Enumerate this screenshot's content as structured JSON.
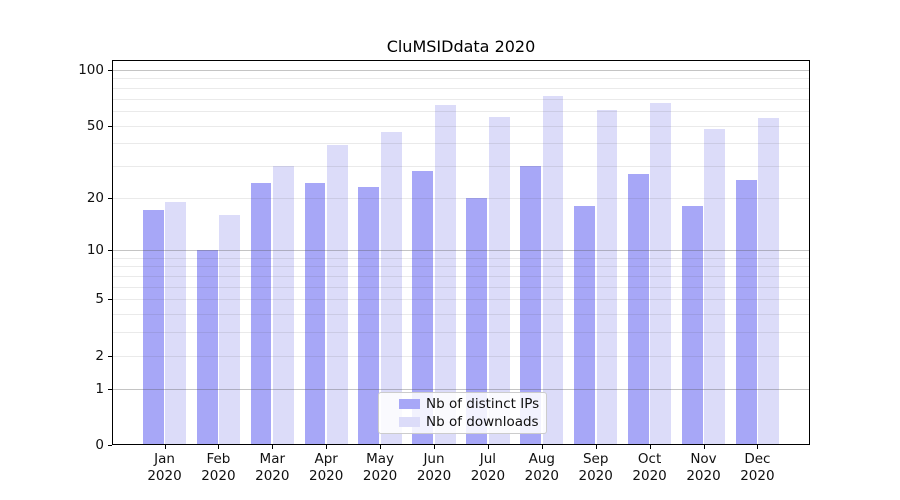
{
  "chart_data": {
    "type": "bar",
    "title": "CluMSIDdata 2020",
    "categories": [
      "Jan",
      "Feb",
      "Mar",
      "Apr",
      "May",
      "Jun",
      "Jul",
      "Aug",
      "Sep",
      "Oct",
      "Nov",
      "Dec"
    ],
    "x_year_label": "2020",
    "series": [
      {
        "name": "Nb of distinct IPs",
        "color": "#a7a7f7",
        "values": [
          17,
          10,
          24,
          24,
          23,
          28,
          20,
          30,
          18,
          27,
          18,
          25
        ]
      },
      {
        "name": "Nb of downloads",
        "color": "#dcdcf9",
        "values": [
          19,
          16,
          30,
          39,
          46,
          65,
          56,
          72,
          61,
          66,
          48,
          55
        ]
      }
    ],
    "ylabel": "",
    "xlabel": "",
    "yscale": "log1p",
    "ylim": [
      0,
      113
    ],
    "yticks": [
      0,
      1,
      2,
      5,
      10,
      20,
      50,
      100
    ],
    "grid": {
      "major_values": [
        1,
        10,
        100
      ],
      "minor_values": [
        2,
        3,
        4,
        5,
        6,
        7,
        8,
        9,
        20,
        30,
        40,
        50,
        60,
        70,
        80,
        90
      ],
      "major_color": "rgba(85,85,85,0.35)",
      "minor_color": "rgba(85,85,85,0.12)",
      "grid_above_bars": true
    },
    "legend": {
      "position": "lower-center-inside",
      "frame_color": "#cccccc"
    }
  }
}
